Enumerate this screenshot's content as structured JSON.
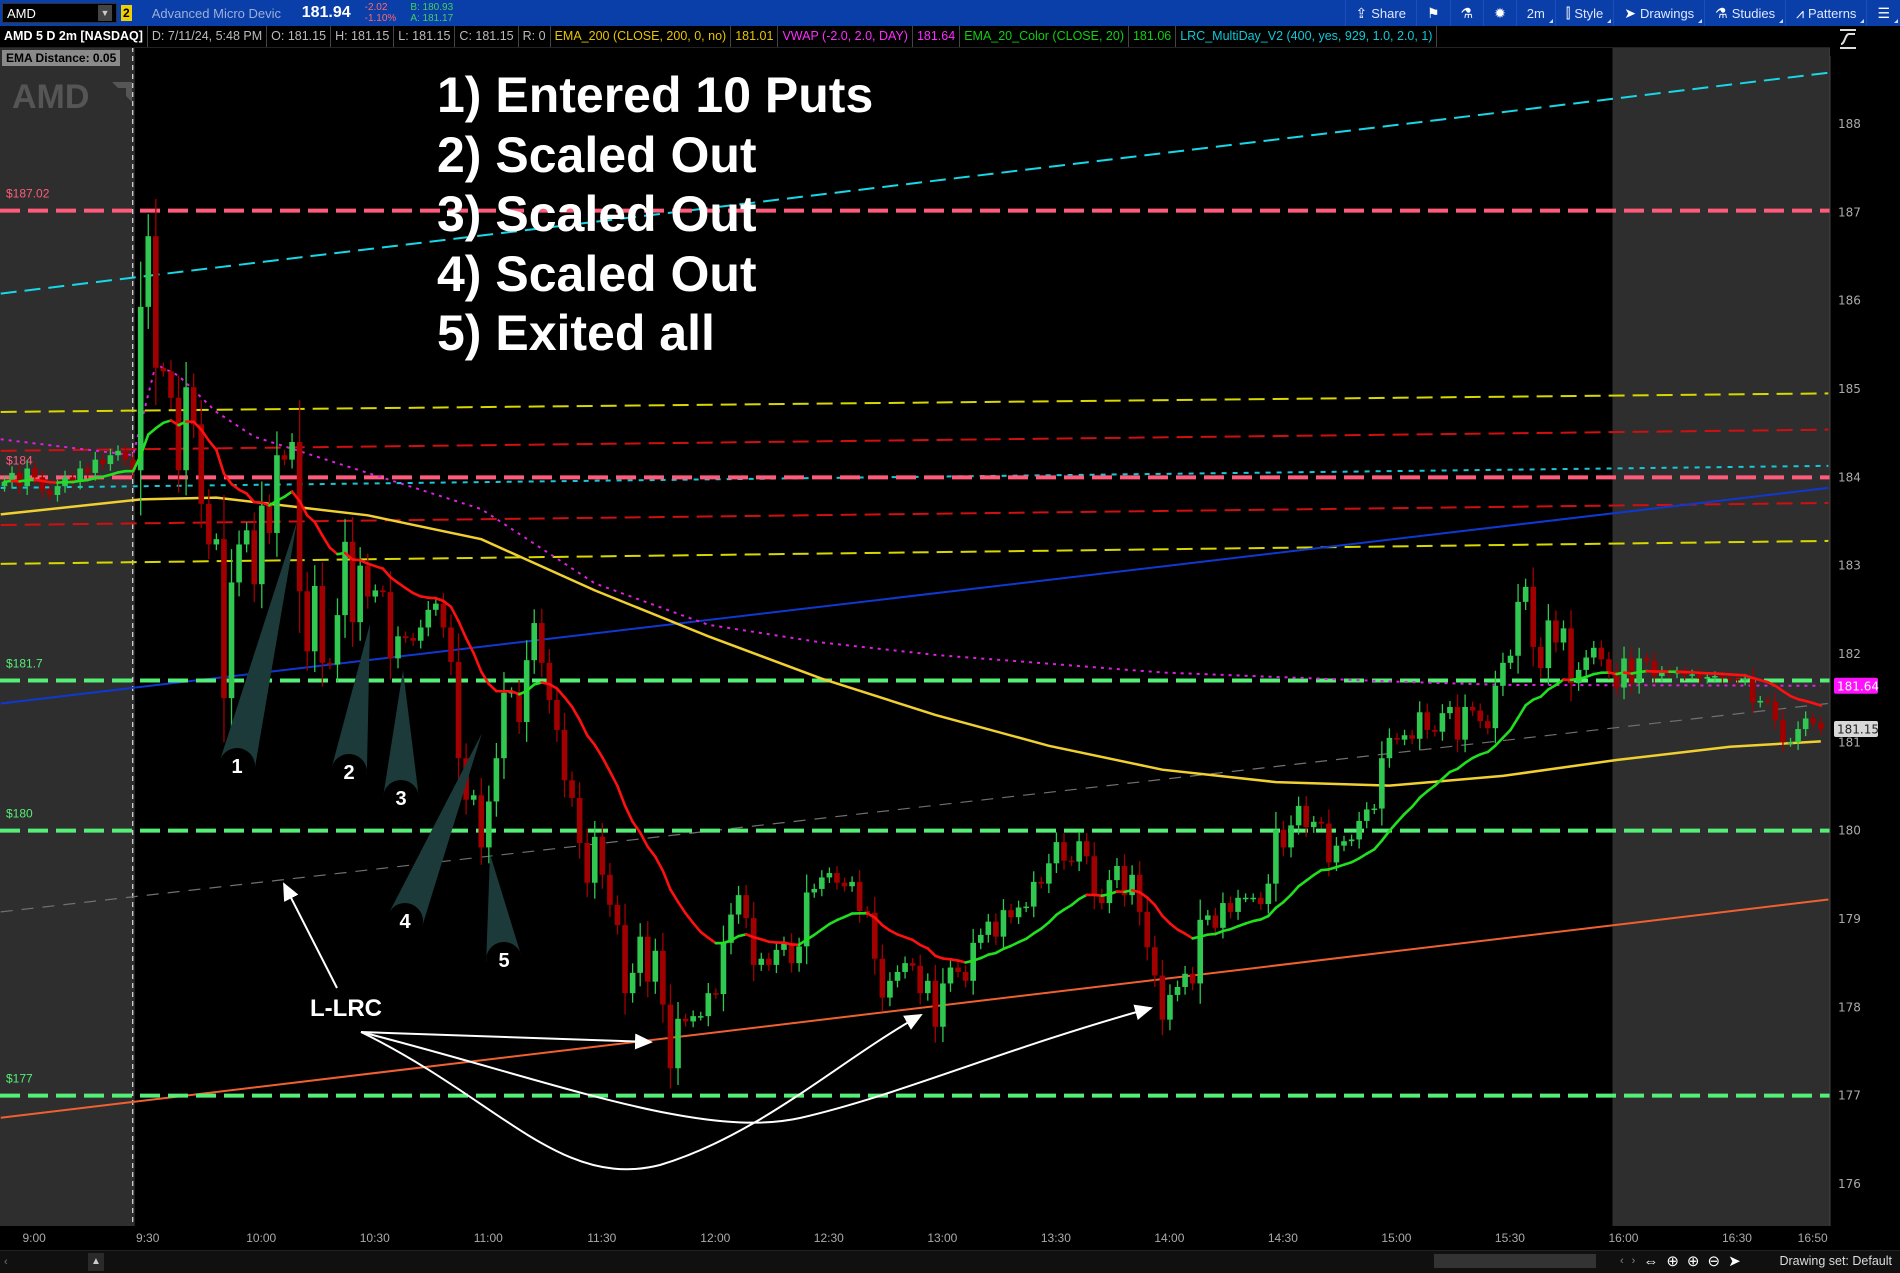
{
  "toolbar": {
    "symbol": "AMD",
    "link_badge": "2",
    "description": "Advanced Micro Devic",
    "last_price": "181.94",
    "net_change": "-2.02",
    "pct_change": "-1.10%",
    "bid": "B: 180.93",
    "ask": "A: 181.17",
    "buttons": [
      {
        "label": "Share",
        "icon": "share-icon"
      },
      {
        "label": "",
        "icon": "flag-icon"
      },
      {
        "label": "",
        "icon": "flask-icon"
      },
      {
        "label": "",
        "icon": "gear-icon"
      },
      {
        "label": "2m",
        "icon": ""
      },
      {
        "label": "Style",
        "icon": "candle-icon"
      },
      {
        "label": "Drawings",
        "icon": "cursor-icon"
      },
      {
        "label": "Studies",
        "icon": "flask-icon"
      },
      {
        "label": "Patterns",
        "icon": "patterns-icon"
      },
      {
        "label": "",
        "icon": "menu-icon"
      }
    ]
  },
  "infobar": {
    "title": "AMD 5 D 2m [NASDAQ]",
    "date": "D: 7/11/24, 5:48 PM",
    "open": "O: 181.15",
    "high": "H: 181.15",
    "low": "L: 181.15",
    "close": "C: 181.15",
    "range": "R: 0",
    "studies": [
      {
        "name": "EMA_200 (CLOSE, 200, 0, no)",
        "value": "181.01",
        "color": "#e8c400"
      },
      {
        "name": "VWAP (-2.0, 2.0, DAY)",
        "value": "181.64",
        "color": "#ff2cff"
      },
      {
        "name": "EMA_20_Color (CLOSE, 20)",
        "value": "181.06",
        "color": "#10d010"
      },
      {
        "name": "LRC_MultiDay_V2 (400, yes, 929, 1.0, 2.0, 1)",
        "value": "",
        "color": "#10c8d8"
      }
    ]
  },
  "ema_distance": "EMA Distance: 0.05",
  "watermark": "AMD",
  "annotations": {
    "lines": [
      "1) Entered 10 Puts",
      "2) Scaled Out",
      "3) Scaled Out",
      "4) Scaled Out",
      "5) Exited all"
    ],
    "callouts": [
      "1",
      "2",
      "3",
      "4",
      "5"
    ],
    "lrc_label": "L-LRC"
  },
  "bottombar": {
    "drawing_set": "Drawing set: Default"
  },
  "chart_data": {
    "type": "candlestick",
    "symbol": "AMD",
    "interval_minutes": 2,
    "start": "8:54",
    "first_open": 183.9,
    "closes": [
      183.95,
      184.05,
      183.9,
      184.1,
      184.0,
      183.85,
      183.8,
      183.9,
      184.0,
      183.95,
      184.1,
      184.05,
      184.2,
      184.15,
      184.25,
      184.3,
      184.2,
      184.08,
      185.93,
      186.73,
      185.24,
      185.2,
      184.9,
      184.08,
      185.02,
      184.6,
      183.7,
      183.24,
      183.3,
      181.5,
      182.81,
      183.24,
      183.4,
      182.79,
      183.68,
      183.37,
      184.25,
      184.2,
      184.4,
      182.71,
      182.03,
      182.77,
      181.9,
      181.88,
      182.44,
      183.27,
      182.36,
      183.0,
      182.65,
      182.72,
      182.7,
      181.95,
      182.2,
      182.18,
      182.15,
      182.3,
      182.5,
      182.57,
      182.3,
      181.91,
      180.82,
      180.35,
      180.4,
      179.81,
      180.33,
      180.82,
      181.56,
      181.57,
      181.23,
      181.93,
      182.35,
      181.9,
      181.48,
      181.14,
      180.57,
      180.37,
      179.86,
      179.41,
      179.93,
      179.5,
      179.16,
      178.93,
      178.16,
      178.39,
      178.8,
      178.29,
      178.64,
      178.03,
      177.31,
      177.87,
      177.84,
      177.9,
      177.9,
      178.16,
      178.15,
      178.73,
      179.05,
      179.27,
      179.01,
      178.48,
      178.55,
      178.48,
      178.65,
      178.73,
      178.5,
      178.69,
      179.3,
      179.34,
      179.47,
      179.52,
      179.41,
      179.37,
      179.42,
      179.09,
      179.07,
      178.55,
      178.11,
      178.3,
      178.4,
      178.5,
      178.47,
      178.16,
      178.3,
      177.78,
      178.27,
      178.45,
      178.4,
      178.3,
      178.73,
      178.82,
      178.97,
      178.8,
      179.1,
      179.02,
      179.13,
      179.14,
      179.42,
      179.4,
      179.63,
      179.87,
      179.66,
      179.65,
      179.88,
      179.71,
      179.27,
      179.18,
      179.44,
      179.6,
      179.27,
      179.5,
      179.08,
      178.68,
      178.36,
      177.86,
      178.14,
      178.23,
      178.38,
      178.27,
      178.99,
      179.04,
      178.9,
      179.18,
      179.08,
      179.24,
      179.24,
      179.24,
      179.17,
      179.4,
      180.01,
      179.81,
      180.06,
      180.28,
      180.04,
      180.1,
      180.08,
      179.64,
      179.83,
      179.88,
      179.9,
      180.11,
      180.24,
      180.25,
      180.82,
      181.05,
      181.03,
      181.08,
      181.04,
      181.34,
      181.14,
      181.12,
      181.33,
      181.4,
      181.03,
      181.4,
      181.36,
      181.24,
      181.16,
      181.64,
      181.9,
      181.98,
      182.59,
      182.76,
      182.08,
      181.84,
      182.38,
      182.13,
      182.29,
      181.67,
      181.82,
      181.96,
      182.07,
      181.94,
      181.8,
      181.62,
      181.95,
      181.67,
      181.95,
      181.92,
      181.75,
      181.8,
      181.78,
      181.8,
      181.76,
      181.77,
      181.72,
      181.74,
      181.75,
      181.73,
      181.72,
      181.7,
      181.72,
      181.45,
      181.47,
      181.46,
      181.25,
      181.0,
      181.0,
      181.15,
      181.27,
      181.22,
      181.15
    ],
    "regular_session": [
      "9:30",
      "16:00"
    ],
    "y_axis": {
      "range": [
        175.6,
        188.9
      ],
      "ticks": [
        "176",
        "177",
        "178",
        "179",
        "180",
        "181",
        "182",
        "183",
        "184",
        "185",
        "186",
        "187",
        "188"
      ]
    },
    "x_axis": {
      "ticks": [
        "9:00",
        "9:30",
        "10:00",
        "10:30",
        "11:00",
        "11:30",
        "12:00",
        "12:30",
        "13:00",
        "13:30",
        "14:00",
        "14:30",
        "15:00",
        "15:30",
        "16:00",
        "16:30",
        "16:50"
      ]
    },
    "ema200": [
      [
        "8:53",
        183.58
      ],
      [
        "9:30",
        183.75
      ],
      [
        "9:50",
        183.77
      ],
      [
        "10:30",
        183.57
      ],
      [
        "11:00",
        183.3
      ],
      [
        "11:30",
        182.72
      ],
      [
        "12:00",
        182.2
      ],
      [
        "12:30",
        181.72
      ],
      [
        "13:00",
        181.31
      ],
      [
        "13:30",
        180.96
      ],
      [
        "14:00",
        180.69
      ],
      [
        "14:30",
        180.55
      ],
      [
        "15:00",
        180.51
      ],
      [
        "15:30",
        180.62
      ],
      [
        "16:00",
        180.8
      ],
      [
        "16:30",
        180.95
      ],
      [
        "16:54",
        181.01
      ]
    ],
    "vwap": [
      [
        "8:53",
        184.43
      ],
      [
        "9:28",
        184.25
      ],
      [
        "9:34",
        185.28
      ],
      [
        "9:40",
        185.15
      ],
      [
        "9:50",
        184.74
      ],
      [
        "10:00",
        184.46
      ],
      [
        "10:30",
        184.05
      ],
      [
        "11:00",
        183.64
      ],
      [
        "11:30",
        182.8
      ],
      [
        "12:00",
        182.33
      ],
      [
        "12:30",
        182.13
      ],
      [
        "13:00",
        181.99
      ],
      [
        "14:00",
        181.79
      ],
      [
        "15:00",
        181.69
      ],
      [
        "15:30",
        181.65
      ],
      [
        "16:54",
        181.64
      ]
    ],
    "price_levels": [
      {
        "price": 187.02,
        "label": "$187.02",
        "color": "#ff5c7c"
      },
      {
        "price": 184.0,
        "label": "$184",
        "color": "#ff5c7c"
      },
      {
        "price": 181.7,
        "label": "$181.7",
        "color": "#55ee77"
      },
      {
        "price": 180.0,
        "label": "$180",
        "color": "#55ee77"
      },
      {
        "price": 177.0,
        "label": "$177",
        "color": "#55ee77"
      }
    ],
    "lrc_lines": [
      {
        "from": [
          "8:53",
          186.08
        ],
        "to": [
          "16:56",
          188.58
        ],
        "color": "#18d8e8",
        "style": "dash"
      },
      {
        "from": [
          "8:53",
          184.74
        ],
        "to": [
          "16:56",
          184.95
        ],
        "color": "#d8d800",
        "style": "dash"
      },
      {
        "from": [
          "8:53",
          184.3
        ],
        "to": [
          "16:56",
          184.54
        ],
        "color": "#d01010",
        "style": "dash"
      },
      {
        "from": [
          "8:53",
          183.88
        ],
        "to": [
          "16:56",
          184.13
        ],
        "color": "#18c8d8",
        "style": "dot"
      },
      {
        "from": [
          "8:53",
          183.46
        ],
        "to": [
          "16:56",
          183.71
        ],
        "color": "#d01010",
        "style": "dash"
      },
      {
        "from": [
          "8:53",
          183.02
        ],
        "to": [
          "16:56",
          183.28
        ],
        "color": "#d8d800",
        "style": "dash"
      },
      {
        "from": [
          "8:53",
          181.44
        ],
        "to": [
          "16:56",
          183.88
        ],
        "color": "#1038d0",
        "style": "solid"
      },
      {
        "from": [
          "8:53",
          179.08
        ],
        "to": [
          "16:56",
          181.44
        ],
        "color": "#707070",
        "style": "thin-dash"
      },
      {
        "from": [
          "8:53",
          176.75
        ],
        "to": [
          "16:56",
          179.22
        ],
        "color": "#f06030",
        "style": "solid"
      }
    ],
    "price_bubbles": [
      {
        "value": "181.64",
        "bg": "#ff10ff",
        "fg": "#ffffff"
      },
      {
        "value": "181.15",
        "bg": "#d8d8d8",
        "fg": "#222222"
      }
    ],
    "colors": {
      "up": "#30c850",
      "down": "#a00000",
      "ema20_up": "#20e020",
      "ema20_down": "#ff1010",
      "ema200": "#f0d030",
      "vwap": "#e020e0",
      "extended_hours_bg": "#2e2e2e"
    }
  }
}
